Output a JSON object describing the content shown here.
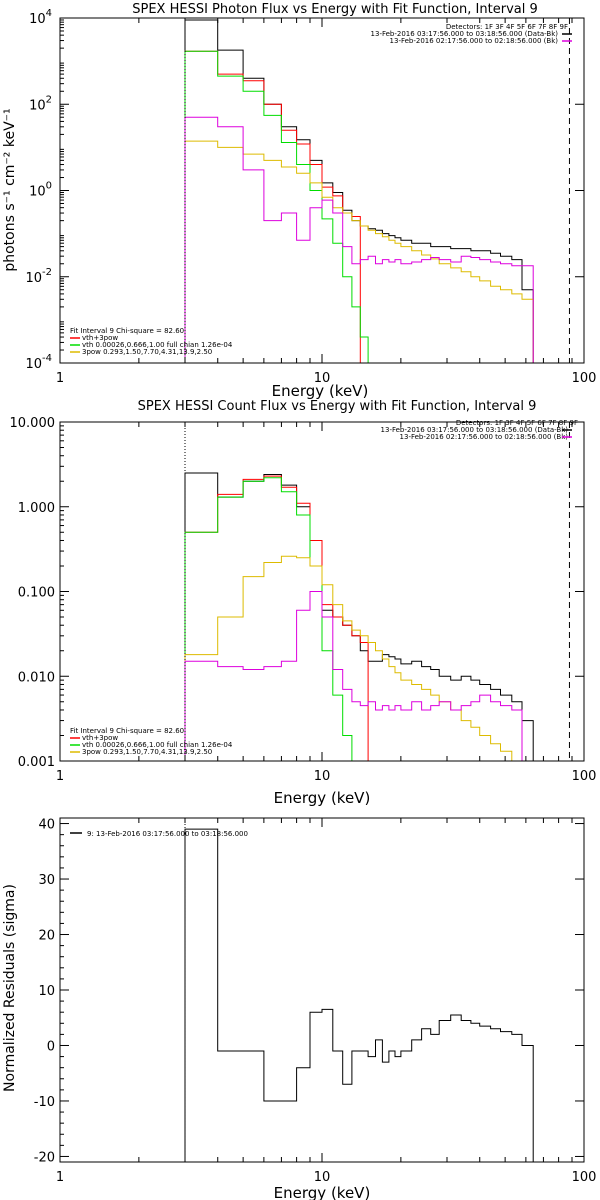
{
  "chart_data": [
    {
      "type": "line",
      "title": "SPEX HESSI Photon Flux vs Energy with Fit Function, Interval 9",
      "xlabel": "Energy (keV)",
      "ylabel": "photons s⁻¹ cm⁻² keV⁻¹",
      "xscale": "log",
      "yscale": "log",
      "xlim": [
        1,
        100
      ],
      "ylim": [
        0.0001,
        10000
      ],
      "x_ticks": [
        1,
        10,
        100
      ],
      "x_tick_labels": [
        "1",
        "10",
        "100"
      ],
      "y_ticks": [
        0.0001,
        0.01,
        1,
        100,
        10000
      ],
      "y_tick_labels": [
        {
          "base": "10",
          "exp": "-4"
        },
        {
          "base": "10",
          "exp": "-2"
        },
        {
          "base": "10",
          "exp": "0"
        },
        {
          "base": "10",
          "exp": "2"
        },
        {
          "base": "10",
          "exp": "4"
        }
      ],
      "legend_top": [
        "Detectors: 1F 3F 4F 5F 6F 7F 8F 9F",
        "13-Feb-2016 03:17:56.000 to 03:18:56.000 (Data-Bk)",
        "13-Feb-2016 02:17:56.000 to 02:18:56.000 (Bk)"
      ],
      "legend_bottom": [
        "Fit Interval 9   Chi-square = 82.60",
        "vth+3pow",
        "vth 0.00026,0.666,1.00   full chian 1.26e-04",
        "3pow 0.293,1.50,7.70,4.31,13.9,2.50"
      ],
      "series": [
        {
          "key": "data",
          "color": "#000000",
          "values": [
            9000,
            1800,
            400,
            100,
            30,
            15,
            5,
            1.5,
            0.9,
            0.35,
            0.2,
            0.15,
            0.13,
            0.12,
            0.1,
            0.09,
            0.08,
            0.07,
            0.06,
            0.06,
            0.05,
            0.05,
            0.045,
            0.045,
            0.04,
            0.04,
            0.035,
            0.03,
            0.025,
            0.005
          ]
        },
        {
          "key": "total",
          "color": "#ff0000",
          "values": [
            1700,
            500,
            350,
            100,
            25,
            12,
            4,
            1.2,
            0.75,
            0.3,
            0.25
          ]
        },
        {
          "key": "vth",
          "color": "#00dd00",
          "values": [
            1700,
            450,
            200,
            55,
            13,
            4,
            1,
            0.22,
            0.06,
            0.01,
            0.002,
            0.0004,
            8e-05
          ]
        },
        {
          "key": "3pow",
          "color": "#ddbb00",
          "values": [
            14,
            10,
            7,
            5,
            3.5,
            2.5,
            1.5,
            0.7,
            0.4,
            0.3,
            0.2,
            0.15,
            0.12,
            0.1,
            0.085,
            0.07,
            0.06,
            0.05,
            0.04,
            0.032,
            0.026,
            0.02,
            0.016,
            0.013,
            0.01,
            0.008,
            0.006,
            0.005,
            0.004,
            0.003
          ]
        },
        {
          "key": "bk",
          "color": "#dd00dd",
          "values": [
            50,
            30,
            3,
            0.2,
            0.3,
            0.07,
            0.4,
            0.6,
            0.3,
            0.05,
            0.02,
            0.025,
            0.03,
            0.02,
            0.025,
            0.022,
            0.025,
            0.02,
            0.022,
            0.025,
            0.028,
            0.025,
            0.022,
            0.03,
            0.028,
            0.025,
            0.022,
            0.02,
            0.018,
            0.018
          ]
        }
      ]
    },
    {
      "type": "line",
      "title": "SPEX HESSI Count Flux vs Energy with Fit Function, Interval 9",
      "xlabel": "Energy (keV)",
      "ylabel": "",
      "xscale": "log",
      "yscale": "log",
      "xlim": [
        1,
        100
      ],
      "ylim": [
        0.001,
        10
      ],
      "x_ticks": [
        1,
        10,
        100
      ],
      "x_tick_labels": [
        "1",
        "10",
        "100"
      ],
      "y_ticks": [
        0.001,
        0.01,
        0.1,
        1,
        10
      ],
      "y_tick_labels": [
        "0.001",
        "0.010",
        "0.100",
        "1.000",
        "10.000"
      ],
      "legend_top": [
        "Detectors: 1F 3F 4F 5F 6F 7F 8F 9F",
        "13-Feb-2016 03:17:56.000 to 03:18:56.000 (Data-Bk)",
        "13-Feb-2016 02:17:56.000 to 02:18:56.000 (Bk)"
      ],
      "legend_bottom": [
        "Fit Interval 9   Chi-square = 82.60",
        "vth+3pow",
        "vth 0.00026,0.666,1.00   full chian 1.26e-04",
        "3pow 0.293,1.50,7.70,4.31,13.9,2.50"
      ],
      "series": [
        {
          "key": "data",
          "color": "#000000",
          "values": [
            2.5,
            1.3,
            2.0,
            2.4,
            1.8,
            1.0,
            0.4,
            0.06,
            0.05,
            0.04,
            0.03,
            0.02,
            0.015,
            0.015,
            0.018,
            0.017,
            0.016,
            0.014,
            0.015,
            0.013,
            0.012,
            0.01,
            0.009,
            0.01,
            0.009,
            0.008,
            0.007,
            0.006,
            0.005,
            0.003
          ]
        },
        {
          "key": "total",
          "color": "#ff0000",
          "values": [
            0.5,
            1.4,
            2.1,
            2.3,
            1.7,
            1.1,
            0.4,
            0.07,
            0.05,
            0.04,
            0.03,
            0.025
          ]
        },
        {
          "key": "vth",
          "color": "#00dd00",
          "values": [
            0.5,
            1.3,
            2.0,
            2.2,
            1.5,
            0.8,
            0.2,
            0.02,
            0.006,
            0.002,
            0.0007
          ]
        },
        {
          "key": "3pow",
          "color": "#ddbb00",
          "values": [
            0.018,
            0.05,
            0.15,
            0.22,
            0.26,
            0.25,
            0.2,
            0.12,
            0.07,
            0.045,
            0.035,
            0.03,
            0.025,
            0.02,
            0.016,
            0.013,
            0.011,
            0.009,
            0.008,
            0.007,
            0.006,
            0.005,
            0.004,
            0.003,
            0.0025,
            0.002,
            0.0016,
            0.0013,
            0.001
          ]
        },
        {
          "key": "bk",
          "color": "#dd00dd",
          "values": [
            0.015,
            0.013,
            0.012,
            0.013,
            0.015,
            0.06,
            0.1,
            0.05,
            0.012,
            0.007,
            0.005,
            0.0045,
            0.005,
            0.004,
            0.0045,
            0.004,
            0.0045,
            0.004,
            0.005,
            0.004,
            0.0045,
            0.005,
            0.004,
            0.0045,
            0.005,
            0.006,
            0.005,
            0.0045,
            0.004,
            0.001
          ]
        }
      ]
    },
    {
      "type": "line",
      "title": "",
      "xlabel": "Energy (keV)",
      "ylabel": "Normalized Residuals (sigma)",
      "xscale": "log",
      "yscale": "linear",
      "xlim": [
        1,
        100
      ],
      "ylim": [
        -21,
        41
      ],
      "x_ticks": [
        1,
        10,
        100
      ],
      "x_tick_labels": [
        "1",
        "10",
        "100"
      ],
      "y_ticks": [
        -20,
        -10,
        0,
        10,
        20,
        30,
        40
      ],
      "y_tick_labels": [
        "-20",
        "-10",
        "0",
        "10",
        "20",
        "30",
        "40"
      ],
      "legend_top": [
        "9: 13-Feb-2016 03:17:56.000 to 03:18:56.000"
      ],
      "legend_bottom": [],
      "series": [
        {
          "key": "resid",
          "color": "#000000",
          "values": [
            39,
            -1,
            -1,
            -10,
            -10,
            -4,
            6,
            6.5,
            -1,
            -7,
            -1,
            -1,
            -2,
            1,
            -3,
            -1,
            -2,
            -1,
            1,
            3,
            2,
            4.5,
            5.5,
            4.5,
            4,
            3.5,
            3,
            2.5,
            2,
            0
          ]
        }
      ]
    }
  ],
  "energy_bin_edges": [
    3,
    4,
    5,
    6,
    7,
    8,
    9,
    10,
    11,
    12,
    13,
    14,
    15,
    16,
    17,
    18,
    19,
    20,
    22,
    24,
    26,
    28,
    31,
    34,
    37,
    40,
    44,
    48,
    53,
    58,
    64,
    70,
    76,
    82,
    88
  ],
  "markers": {
    "fit_low_keV": 3,
    "fit_high_keV": 88
  }
}
